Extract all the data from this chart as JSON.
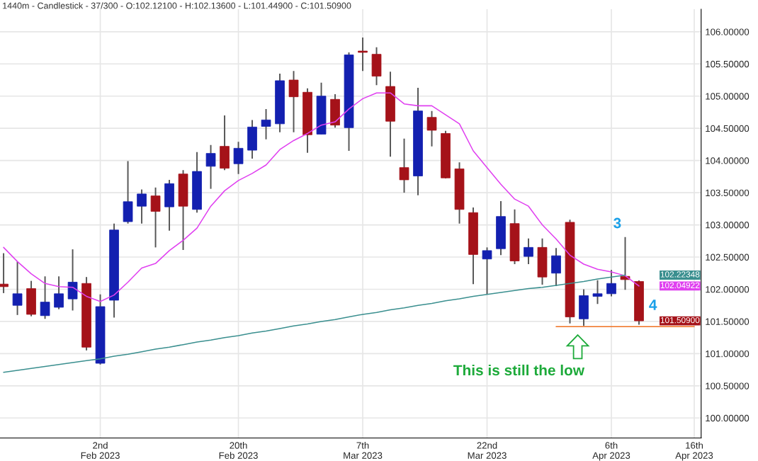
{
  "chart_data": {
    "type": "candlestick",
    "title": "1440m - Candlestick - 37/300 - O:102.12100 - H:102.13600 - L:101.44900 - C:101.50900",
    "categories": [
      null,
      null,
      null,
      null,
      null,
      null,
      null,
      "2nd\nFeb 2023",
      null,
      null,
      null,
      null,
      null,
      null,
      null,
      null,
      null,
      "20th\nFeb 2023",
      null,
      null,
      null,
      null,
      null,
      null,
      null,
      null,
      "7th\nMar 2023",
      null,
      null,
      null,
      null,
      null,
      null,
      null,
      null,
      "22nd\nMar 2023",
      null,
      null,
      null,
      null,
      null,
      null,
      null,
      null,
      "6th\nApr 2023",
      null,
      null,
      null,
      null,
      null,
      "16th\nApr 2023"
    ],
    "ohlc": [
      [
        102.08,
        102.56,
        101.94,
        102.04
      ],
      [
        101.75,
        102.43,
        101.6,
        101.93
      ],
      [
        102.01,
        102.13,
        101.58,
        101.61
      ],
      [
        101.59,
        102.2,
        101.54,
        101.8
      ],
      [
        101.72,
        102.2,
        101.69,
        101.93
      ],
      [
        101.85,
        102.62,
        101.67,
        102.11
      ],
      [
        102.09,
        102.19,
        101.05,
        101.1
      ],
      [
        100.85,
        101.92,
        100.83,
        101.73
      ],
      [
        101.83,
        103.02,
        101.56,
        102.92
      ],
      [
        103.05,
        103.99,
        103.02,
        103.36
      ],
      [
        103.29,
        103.55,
        103.02,
        103.48
      ],
      [
        103.45,
        103.58,
        102.65,
        103.21
      ],
      [
        103.28,
        103.7,
        102.91,
        103.64
      ],
      [
        103.79,
        103.85,
        102.61,
        103.29
      ],
      [
        103.24,
        104.13,
        103.19,
        103.83
      ],
      [
        103.91,
        104.24,
        103.56,
        104.11
      ],
      [
        104.22,
        104.7,
        103.85,
        103.88
      ],
      [
        103.95,
        104.29,
        103.79,
        104.19
      ],
      [
        104.16,
        104.63,
        104.03,
        104.52
      ],
      [
        104.53,
        104.8,
        104.33,
        104.63
      ],
      [
        104.57,
        105.35,
        104.44,
        105.24
      ],
      [
        105.25,
        105.39,
        104.44,
        104.99
      ],
      [
        105.06,
        105.12,
        104.12,
        104.4
      ],
      [
        104.41,
        105.21,
        104.41,
        105.0
      ],
      [
        104.95,
        105.03,
        104.51,
        104.55
      ],
      [
        104.51,
        105.68,
        104.15,
        105.64
      ],
      [
        105.7,
        105.91,
        105.39,
        105.68
      ],
      [
        105.65,
        105.76,
        105.17,
        105.31
      ],
      [
        105.15,
        105.38,
        104.06,
        104.61
      ],
      [
        103.89,
        104.34,
        103.5,
        103.7
      ],
      [
        103.76,
        105.13,
        103.46,
        104.77
      ],
      [
        104.67,
        104.77,
        104.22,
        104.47
      ],
      [
        104.42,
        104.46,
        103.72,
        103.73
      ],
      [
        103.87,
        103.97,
        103.02,
        103.24
      ],
      [
        103.19,
        103.27,
        102.08,
        102.54
      ],
      [
        102.47,
        102.65,
        101.92,
        102.6
      ],
      [
        102.63,
        103.37,
        102.53,
        103.13
      ],
      [
        103.02,
        103.24,
        102.39,
        102.44
      ],
      [
        102.51,
        102.79,
        102.39,
        102.65
      ],
      [
        102.65,
        102.79,
        102.07,
        102.19
      ],
      [
        102.25,
        102.64,
        102.05,
        102.52
      ],
      [
        103.04,
        103.08,
        101.47,
        101.57
      ],
      [
        101.54,
        102.0,
        101.43,
        101.9
      ],
      [
        101.89,
        102.14,
        101.77,
        101.93
      ],
      [
        101.93,
        102.3,
        101.89,
        102.09
      ],
      [
        102.2,
        102.81,
        101.99,
        102.15
      ],
      [
        102.121,
        102.136,
        101.449,
        101.509
      ],
      null,
      null,
      null,
      null
    ],
    "colors": [
      "#a51219",
      "#1320b0",
      "#a51219",
      "#1320b0",
      "#1320b0",
      "#1320b0",
      "#a51219",
      "#1320b0",
      "#1320b0",
      "#1320b0",
      "#1320b0",
      "#a51219",
      "#1320b0",
      "#a51219",
      "#1320b0",
      "#1320b0",
      "#a51219",
      "#1320b0",
      "#1320b0",
      "#1320b0",
      "#1320b0",
      "#a51219",
      "#a51219",
      "#1320b0",
      "#a51219",
      "#1320b0",
      "#a51219",
      "#a51219",
      "#a51219",
      "#a51219",
      "#1320b0",
      "#a51219",
      "#a51219",
      "#a51219",
      "#a51219",
      "#1320b0",
      "#1320b0",
      "#a51219",
      "#1320b0",
      "#a51219",
      "#1320b0",
      "#a51219",
      "#1320b0",
      "#1320b0",
      "#1320b0",
      "#a51219",
      "#a51219",
      null,
      null,
      null,
      null
    ],
    "series": [
      {
        "type": "line",
        "color": "#e040f0",
        "values": [
          102.65,
          102.43,
          102.24,
          102.09,
          102.04,
          102.03,
          101.89,
          101.81,
          101.91,
          102.11,
          102.33,
          102.4,
          102.6,
          102.76,
          102.95,
          103.29,
          103.53,
          103.69,
          103.8,
          103.93,
          104.17,
          104.31,
          104.42,
          104.55,
          104.6,
          104.8,
          104.96,
          105.05,
          105.05,
          104.88,
          104.85,
          104.85,
          104.71,
          104.57,
          104.15,
          103.89,
          103.63,
          103.4,
          103.29,
          103.0,
          102.78,
          102.53,
          102.39,
          102.31,
          102.27,
          102.21,
          102.05,
          null,
          null,
          null,
          null
        ]
      },
      {
        "type": "line",
        "color": "#3a8f8f",
        "values": [
          100.71,
          100.74,
          100.77,
          100.8,
          100.83,
          100.86,
          100.89,
          100.92,
          100.96,
          100.99,
          101.03,
          101.07,
          101.1,
          101.14,
          101.18,
          101.21,
          101.25,
          101.28,
          101.32,
          101.35,
          101.39,
          101.43,
          101.46,
          101.5,
          101.53,
          101.57,
          101.61,
          101.64,
          101.68,
          101.71,
          101.75,
          101.78,
          101.82,
          101.85,
          101.89,
          101.92,
          101.95,
          101.98,
          102.01,
          102.03,
          102.06,
          102.09,
          102.12,
          102.16,
          102.19,
          102.22,
          null,
          null,
          null,
          null,
          null
        ]
      },
      {
        "type": "line",
        "color": "#f07020",
        "values": [
          null,
          null,
          null,
          null,
          null,
          null,
          null,
          null,
          null,
          null,
          null,
          null,
          null,
          null,
          null,
          null,
          null,
          null,
          null,
          null,
          null,
          null,
          null,
          null,
          null,
          null,
          null,
          null,
          null,
          null,
          null,
          null,
          null,
          null,
          null,
          null,
          null,
          null,
          null,
          null,
          101.42,
          101.42,
          101.42,
          101.42,
          101.42,
          101.42,
          101.42,
          101.42,
          101.42,
          101.42,
          101.42
        ]
      }
    ],
    "ylim": [
      99.69,
      106.35
    ],
    "yticks": [
      {
        "value": 100,
        "label": "100.00000"
      },
      {
        "value": 100.5,
        "label": "100.50000"
      },
      {
        "value": 101,
        "label": "101.00000"
      },
      {
        "value": 101.5,
        "label": "101.50000"
      },
      {
        "value": 102,
        "label": "102.00000"
      },
      {
        "value": 102.5,
        "label": "102.50000"
      },
      {
        "value": 103,
        "label": "103.00000"
      },
      {
        "value": 103.5,
        "label": "103.50000"
      },
      {
        "value": 104,
        "label": "104.00000"
      },
      {
        "value": 104.5,
        "label": "104.50000"
      },
      {
        "value": 105,
        "label": "105.00000"
      },
      {
        "value": 105.5,
        "label": "105.50000"
      },
      {
        "value": 106,
        "label": "106.00000"
      }
    ],
    "grid": true,
    "annotations": [
      "102.22348",
      "102.04922",
      "101.50900",
      "3",
      "4",
      "This is still the low"
    ]
  }
}
